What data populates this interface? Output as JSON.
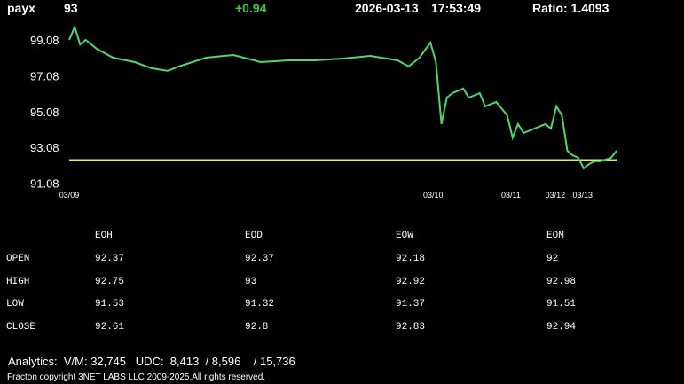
{
  "header": {
    "symbol": "payx",
    "price": 93,
    "change": "+0.94",
    "date": "2026-03-13",
    "time": "17:53:49",
    "ratio": "Ratio: 1.4093"
  },
  "chart_data": {
    "type": "line",
    "x": [
      0,
      1,
      2,
      3,
      5,
      8,
      12,
      15,
      18,
      20,
      25,
      30,
      35,
      40,
      45,
      50,
      55,
      60,
      62,
      64,
      66,
      67,
      68,
      69,
      70,
      72,
      73,
      75,
      76,
      78,
      80,
      81,
      82,
      83,
      85,
      87,
      88,
      89,
      90,
      91,
      92,
      93,
      94,
      95,
      96,
      97,
      98,
      99,
      100
    ],
    "series": [
      {
        "color": "#4cd870",
        "values": [
          99.08,
          99.8,
          98.83,
          99.08,
          98.59,
          98.09,
          97.84,
          97.5,
          97.35,
          97.6,
          98.09,
          98.24,
          97.84,
          97.94,
          97.94,
          98.04,
          98.19,
          97.94,
          97.6,
          98.09,
          98.93,
          97.84,
          94.38,
          95.86,
          96.11,
          96.36,
          95.86,
          96.11,
          95.37,
          95.62,
          94.88,
          93.63,
          94.38,
          93.88,
          94.13,
          94.38,
          94.13,
          95.37,
          94.88,
          92.89,
          92.64,
          92.5,
          91.9,
          92.15,
          92.3,
          92.3,
          92.4,
          92.5,
          92.89
        ]
      }
    ],
    "reference_line": 92.37,
    "reference_color": "#d8f070",
    "xlim": [
      0,
      100
    ],
    "xticks": [
      {
        "value": 0,
        "label": "03/09"
      },
      {
        "value": 66.5,
        "label": "03/10"
      },
      {
        "value": 80.7,
        "label": "03/11"
      },
      {
        "value": 88.8,
        "label": "03/12"
      },
      {
        "value": 93.8,
        "label": "03/13"
      }
    ],
    "ylim": [
      90.9,
      100.1
    ],
    "yticks": [
      91.08,
      93.08,
      95.08,
      97.08,
      99.08
    ]
  },
  "table": {
    "columns": [
      "EOH",
      "EOD",
      "EOW",
      "EOM"
    ],
    "rows": [
      {
        "label": "OPEN",
        "values": [
          92.37,
          92.37,
          92.18,
          92
        ]
      },
      {
        "label": "HIGH",
        "values": [
          92.75,
          93,
          92.92,
          92.98
        ]
      },
      {
        "label": "LOW",
        "values": [
          91.53,
          91.32,
          91.37,
          91.51
        ]
      },
      {
        "label": "CLOSE",
        "values": [
          92.61,
          92.8,
          92.83,
          92.94
        ]
      }
    ]
  },
  "footer": {
    "analytics": "Analytics:  V/M: 32,745   UDC:  8,413  / 8,596    / 15,736",
    "copyright": "Fracton copyright 3NET LABS LLC 2009-2025.All rights reserved."
  }
}
